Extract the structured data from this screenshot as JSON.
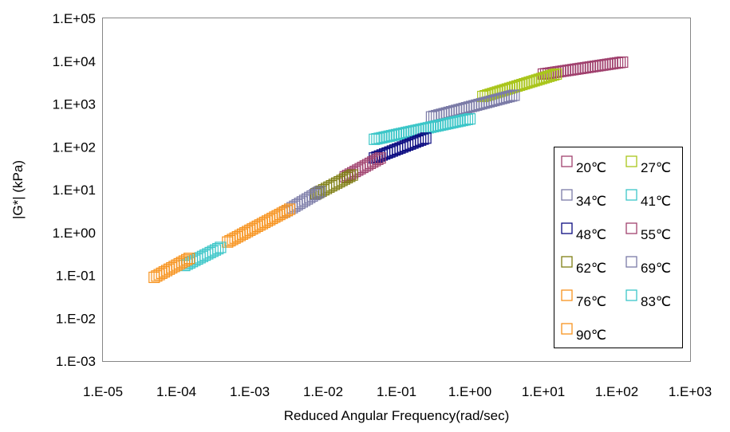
{
  "chart_data": {
    "type": "scatter",
    "title": "",
    "xlabel": "Reduced Angular Frequency(rad/sec)",
    "ylabel": "|G*| (kPa)",
    "x_scale": "log",
    "y_scale": "log",
    "xlim": [
      1e-05,
      1000
    ],
    "ylim": [
      0.001,
      100000
    ],
    "x_ticks": [
      "1.E-05",
      "1.E-04",
      "1.E-03",
      "1.E-02",
      "1.E-01",
      "1.E+00",
      "1.E+01",
      "1.E+02",
      "1.E+03"
    ],
    "y_ticks": [
      "1.E-03",
      "1.E-02",
      "1.E-01",
      "1.E+00",
      "1.E+01",
      "1.E+02",
      "1.E+03",
      "1.E+04",
      "1.E+05"
    ],
    "grid": false,
    "marker": "hollow-square",
    "legend_position": "right",
    "series": [
      {
        "name": "20℃",
        "color": "#a0416e",
        "x_range": [
          10,
          120
        ],
        "y_range": [
          5000,
          9500
        ]
      },
      {
        "name": "27℃",
        "color": "#a9c51b",
        "x_range": [
          1.5,
          15
        ],
        "y_range": [
          1500,
          5000
        ]
      },
      {
        "name": "34℃",
        "color": "#7b7ba7",
        "x_range": [
          0.3,
          4
        ],
        "y_range": [
          500,
          1600
        ]
      },
      {
        "name": "41℃",
        "color": "#3cc6c8",
        "x_range": [
          0.05,
          1.0
        ],
        "y_range": [
          150,
          450
        ]
      },
      {
        "name": "48℃",
        "color": "#0a0a80",
        "x_range": [
          0.05,
          0.25
        ],
        "y_range": [
          55,
          160
        ]
      },
      {
        "name": "55℃",
        "color": "#a0416e",
        "x_range": [
          0.02,
          0.06
        ],
        "y_range": [
          20,
          55
        ]
      },
      {
        "name": "62℃",
        "color": "#7f7f14",
        "x_range": [
          0.008,
          0.025
        ],
        "y_range": [
          8,
          22
        ]
      },
      {
        "name": "69℃",
        "color": "#7b7ba7",
        "x_range": [
          0.003,
          0.009
        ],
        "y_range": [
          3,
          9
        ]
      },
      {
        "name": "76℃",
        "color": "#f7931e",
        "x_range": [
          0.0005,
          0.0035
        ],
        "y_range": [
          0.6,
          3.5
        ]
      },
      {
        "name": "83℃",
        "color": "#3cc6c8",
        "x_range": [
          0.00013,
          0.0004
        ],
        "y_range": [
          0.17,
          0.45
        ]
      },
      {
        "name": "90℃",
        "color": "#f7931e",
        "x_range": [
          5e-05,
          0.00015
        ],
        "y_range": [
          0.09,
          0.25
        ]
      }
    ]
  }
}
